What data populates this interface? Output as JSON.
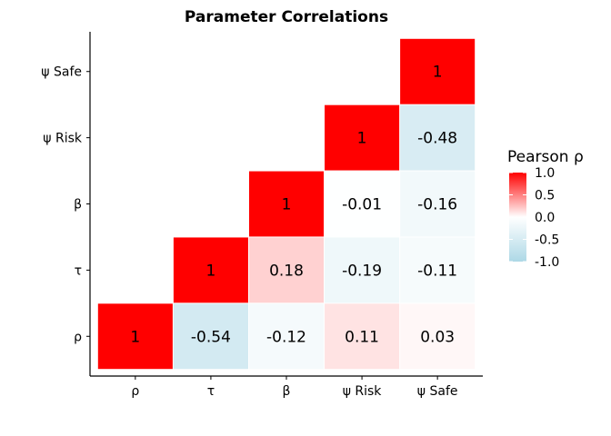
{
  "chart_data": {
    "type": "heatmap",
    "title": "Parameter Correlations",
    "xlabel": "",
    "ylabel": "",
    "x_categories": [
      "ρ",
      "τ",
      "β",
      "ψ Risk",
      "ψ Safe"
    ],
    "y_categories": [
      "ρ",
      "τ",
      "β",
      "ψ Risk",
      "ψ Safe"
    ],
    "cells": [
      {
        "x": "ρ",
        "y": "ρ",
        "value": 1,
        "label": "1"
      },
      {
        "x": "τ",
        "y": "ρ",
        "value": -0.54,
        "label": "-0.54"
      },
      {
        "x": "β",
        "y": "ρ",
        "value": -0.12,
        "label": "-0.12"
      },
      {
        "x": "ψ Risk",
        "y": "ρ",
        "value": 0.11,
        "label": "0.11"
      },
      {
        "x": "ψ Safe",
        "y": "ρ",
        "value": 0.03,
        "label": "0.03"
      },
      {
        "x": "τ",
        "y": "τ",
        "value": 1,
        "label": "1"
      },
      {
        "x": "β",
        "y": "τ",
        "value": 0.18,
        "label": "0.18"
      },
      {
        "x": "ψ Risk",
        "y": "τ",
        "value": -0.19,
        "label": "-0.19"
      },
      {
        "x": "ψ Safe",
        "y": "τ",
        "value": -0.11,
        "label": "-0.11"
      },
      {
        "x": "β",
        "y": "β",
        "value": 1,
        "label": "1"
      },
      {
        "x": "ψ Risk",
        "y": "β",
        "value": -0.01,
        "label": "-0.01"
      },
      {
        "x": "ψ Safe",
        "y": "β",
        "value": -0.16,
        "label": "-0.16"
      },
      {
        "x": "ψ Risk",
        "y": "ψ Risk",
        "value": 1,
        "label": "1"
      },
      {
        "x": "ψ Safe",
        "y": "ψ Risk",
        "value": -0.48,
        "label": "-0.48"
      },
      {
        "x": "ψ Safe",
        "y": "ψ Safe",
        "value": 1,
        "label": "1"
      }
    ],
    "legend": {
      "title": "Pearson ρ",
      "placement": "right",
      "ticks": [
        1.0,
        0.5,
        0.0,
        -0.5,
        -1.0
      ],
      "tick_labels": [
        "1.0",
        "0.5",
        "0.0",
        "-0.5",
        "-1.0"
      ],
      "range": [
        -1,
        1
      ]
    },
    "colors": {
      "high": "#ff0000",
      "mid": "#ffffff",
      "low": "#add8e6"
    },
    "grid": false
  }
}
